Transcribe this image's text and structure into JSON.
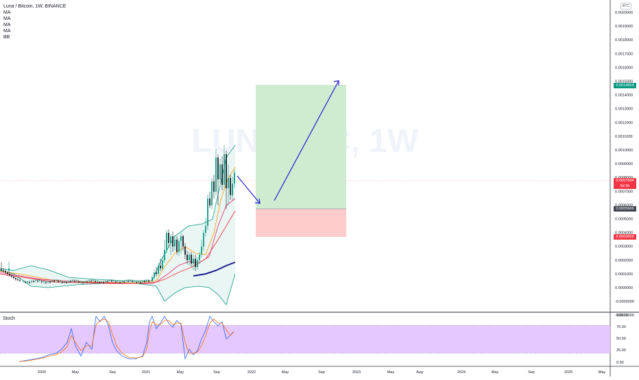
{
  "header": {
    "title": "Luna / Bitcoin, 1W, BINANCE",
    "indicators": [
      "MA",
      "MA",
      "MA",
      "MA",
      "BB"
    ],
    "watermark": "LUNABTC, 1W",
    "currency_button": "BTC"
  },
  "price_axis": {
    "ticks": [
      "0.0020000",
      "0.0019000",
      "0.0018000",
      "0.0017000",
      "0.0016000",
      "0.0015000",
      "0.0014000",
      "0.0013000",
      "0.0012000",
      "0.0011000",
      "0.0010000",
      "0.0009000",
      "0.0008000",
      "0.0007000",
      "0.0006000",
      "0.0005000",
      "0.0004000",
      "0.0003000",
      "0.0002000",
      "0.0001000",
      "0.0000000",
      "-0.0000000",
      "-0.0001000"
    ],
    "badges": [
      {
        "label": "0.0014654",
        "sub": "",
        "color": "#089981"
      },
      {
        "label": "0.0007694",
        "sub": "5d 9h",
        "color": "#f23645"
      },
      {
        "label": "0.0005669",
        "sub": "",
        "color": "#434651"
      },
      {
        "label": "0.0003658",
        "sub": "",
        "color": "#f23645"
      }
    ]
  },
  "stoch": {
    "title": "Stoch",
    "ticks": [
      "100.00",
      "75.00",
      "50.00",
      "25.00",
      "0.00"
    ]
  },
  "time_axis": {
    "ticks": [
      "2020",
      "May",
      "Sep",
      "2021",
      "May",
      "Sep",
      "2022",
      "May",
      "Sep",
      "2023",
      "May",
      "Aug",
      "2024",
      "May",
      "Sep",
      "2025",
      "May"
    ]
  },
  "colors": {
    "take_profit_zone": "#cdecd0",
    "stop_loss_zone": "#ffcccc",
    "arrow": "#1f1fd6",
    "bb_band": "#089981",
    "stoch_band": "#e4c8ff",
    "stoch_k": "#2962ff",
    "stoch_d": "#ff6d00"
  },
  "chart_data": [
    {
      "type": "candlestick",
      "title": "Luna / Bitcoin, 1W, BINANCE",
      "ylim": [
        -0.00015,
        0.00207
      ],
      "overlays": [
        "MA",
        "MA",
        "MA",
        "MA",
        "BB"
      ],
      "trade_setup": {
        "entry": 0.0005669,
        "target": 0.0014654,
        "stop": 0.0003658,
        "last_price": 0.0007694
      }
    },
    {
      "type": "line",
      "title": "Stoch",
      "ylim": [
        0,
        100
      ],
      "bands": [
        20,
        80
      ]
    }
  ]
}
